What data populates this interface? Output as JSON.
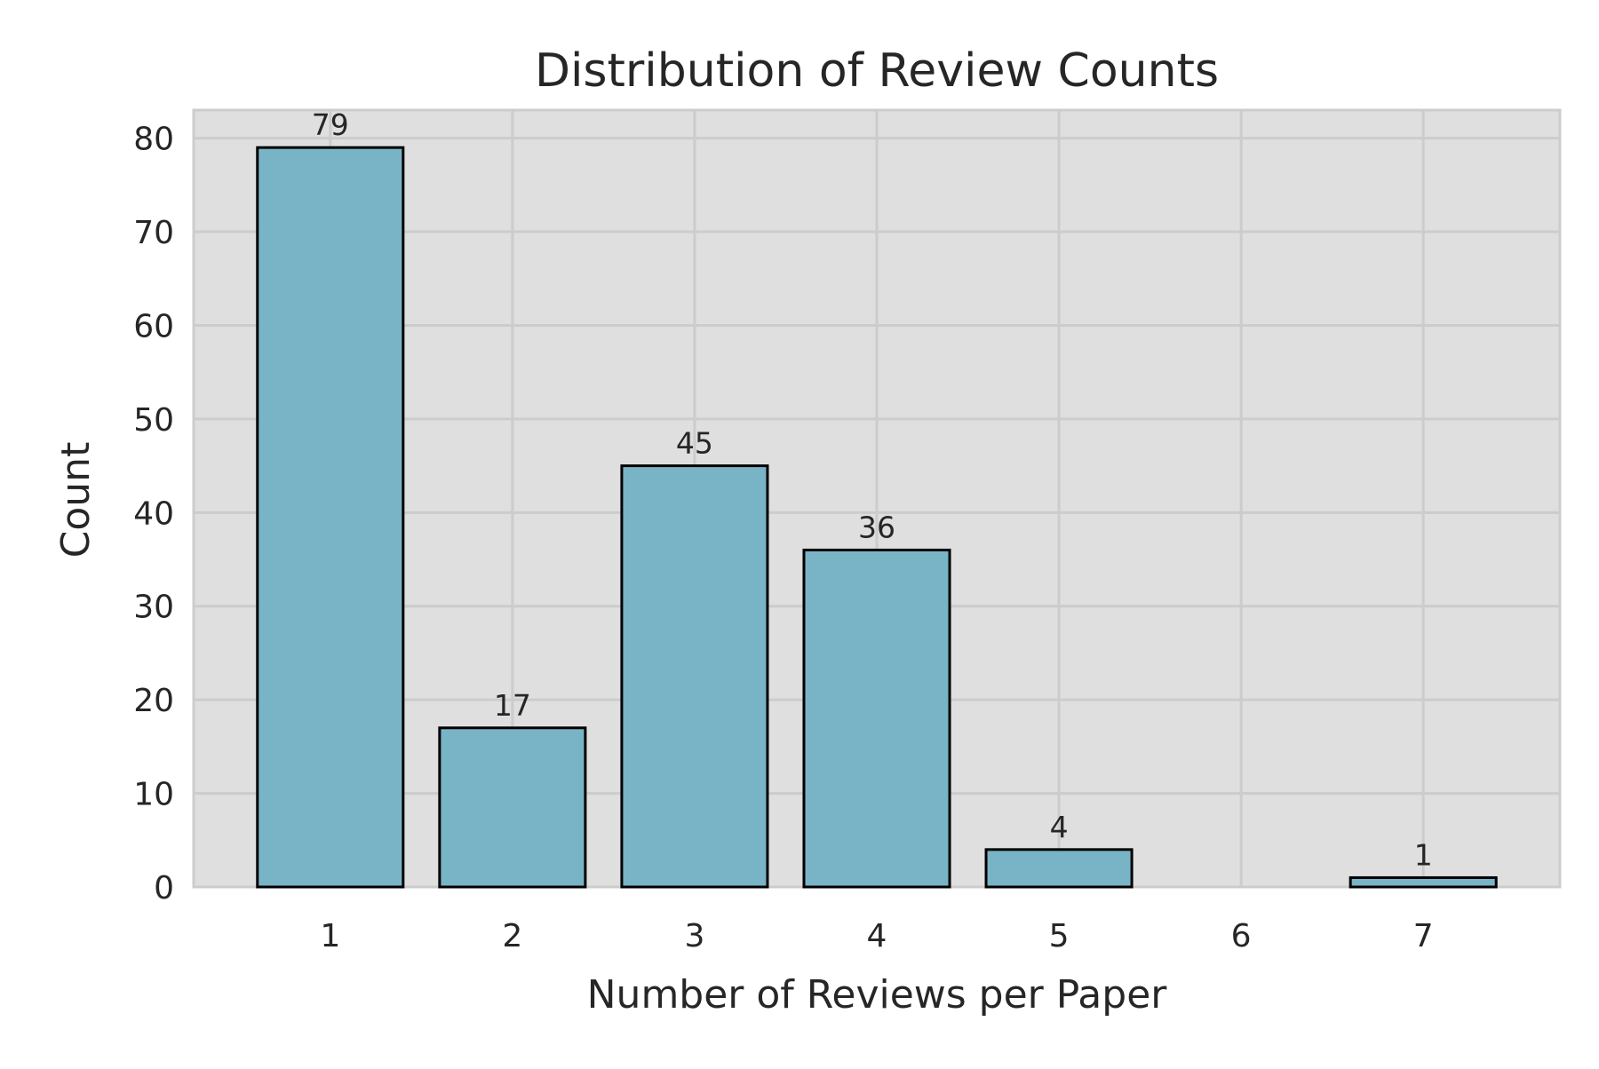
{
  "chart_data": {
    "type": "bar",
    "title": "Distribution of Review Counts",
    "xlabel": "Number of Reviews per Paper",
    "ylabel": "Count",
    "categories": [
      "1",
      "2",
      "3",
      "4",
      "5",
      "6",
      "7"
    ],
    "x": [
      1,
      2,
      3,
      4,
      5,
      6,
      7
    ],
    "values": [
      79,
      17,
      45,
      36,
      4,
      0,
      1
    ],
    "data_labels": [
      "79",
      "17",
      "45",
      "36",
      "4",
      "",
      "1"
    ],
    "y_ticks": [
      0,
      10,
      20,
      30,
      40,
      50,
      60,
      70,
      80
    ],
    "x_ticks": [
      1,
      2,
      3,
      4,
      5,
      6,
      7
    ],
    "ylim": [
      0,
      83
    ],
    "xlim": [
      0.25,
      7.75
    ],
    "grid": true,
    "colors": {
      "bar_fill": "#78b4c6",
      "bar_edge": "#000000",
      "plot_background": "#dfdfdf",
      "grid": "#cccccc",
      "text": "#262626"
    }
  }
}
